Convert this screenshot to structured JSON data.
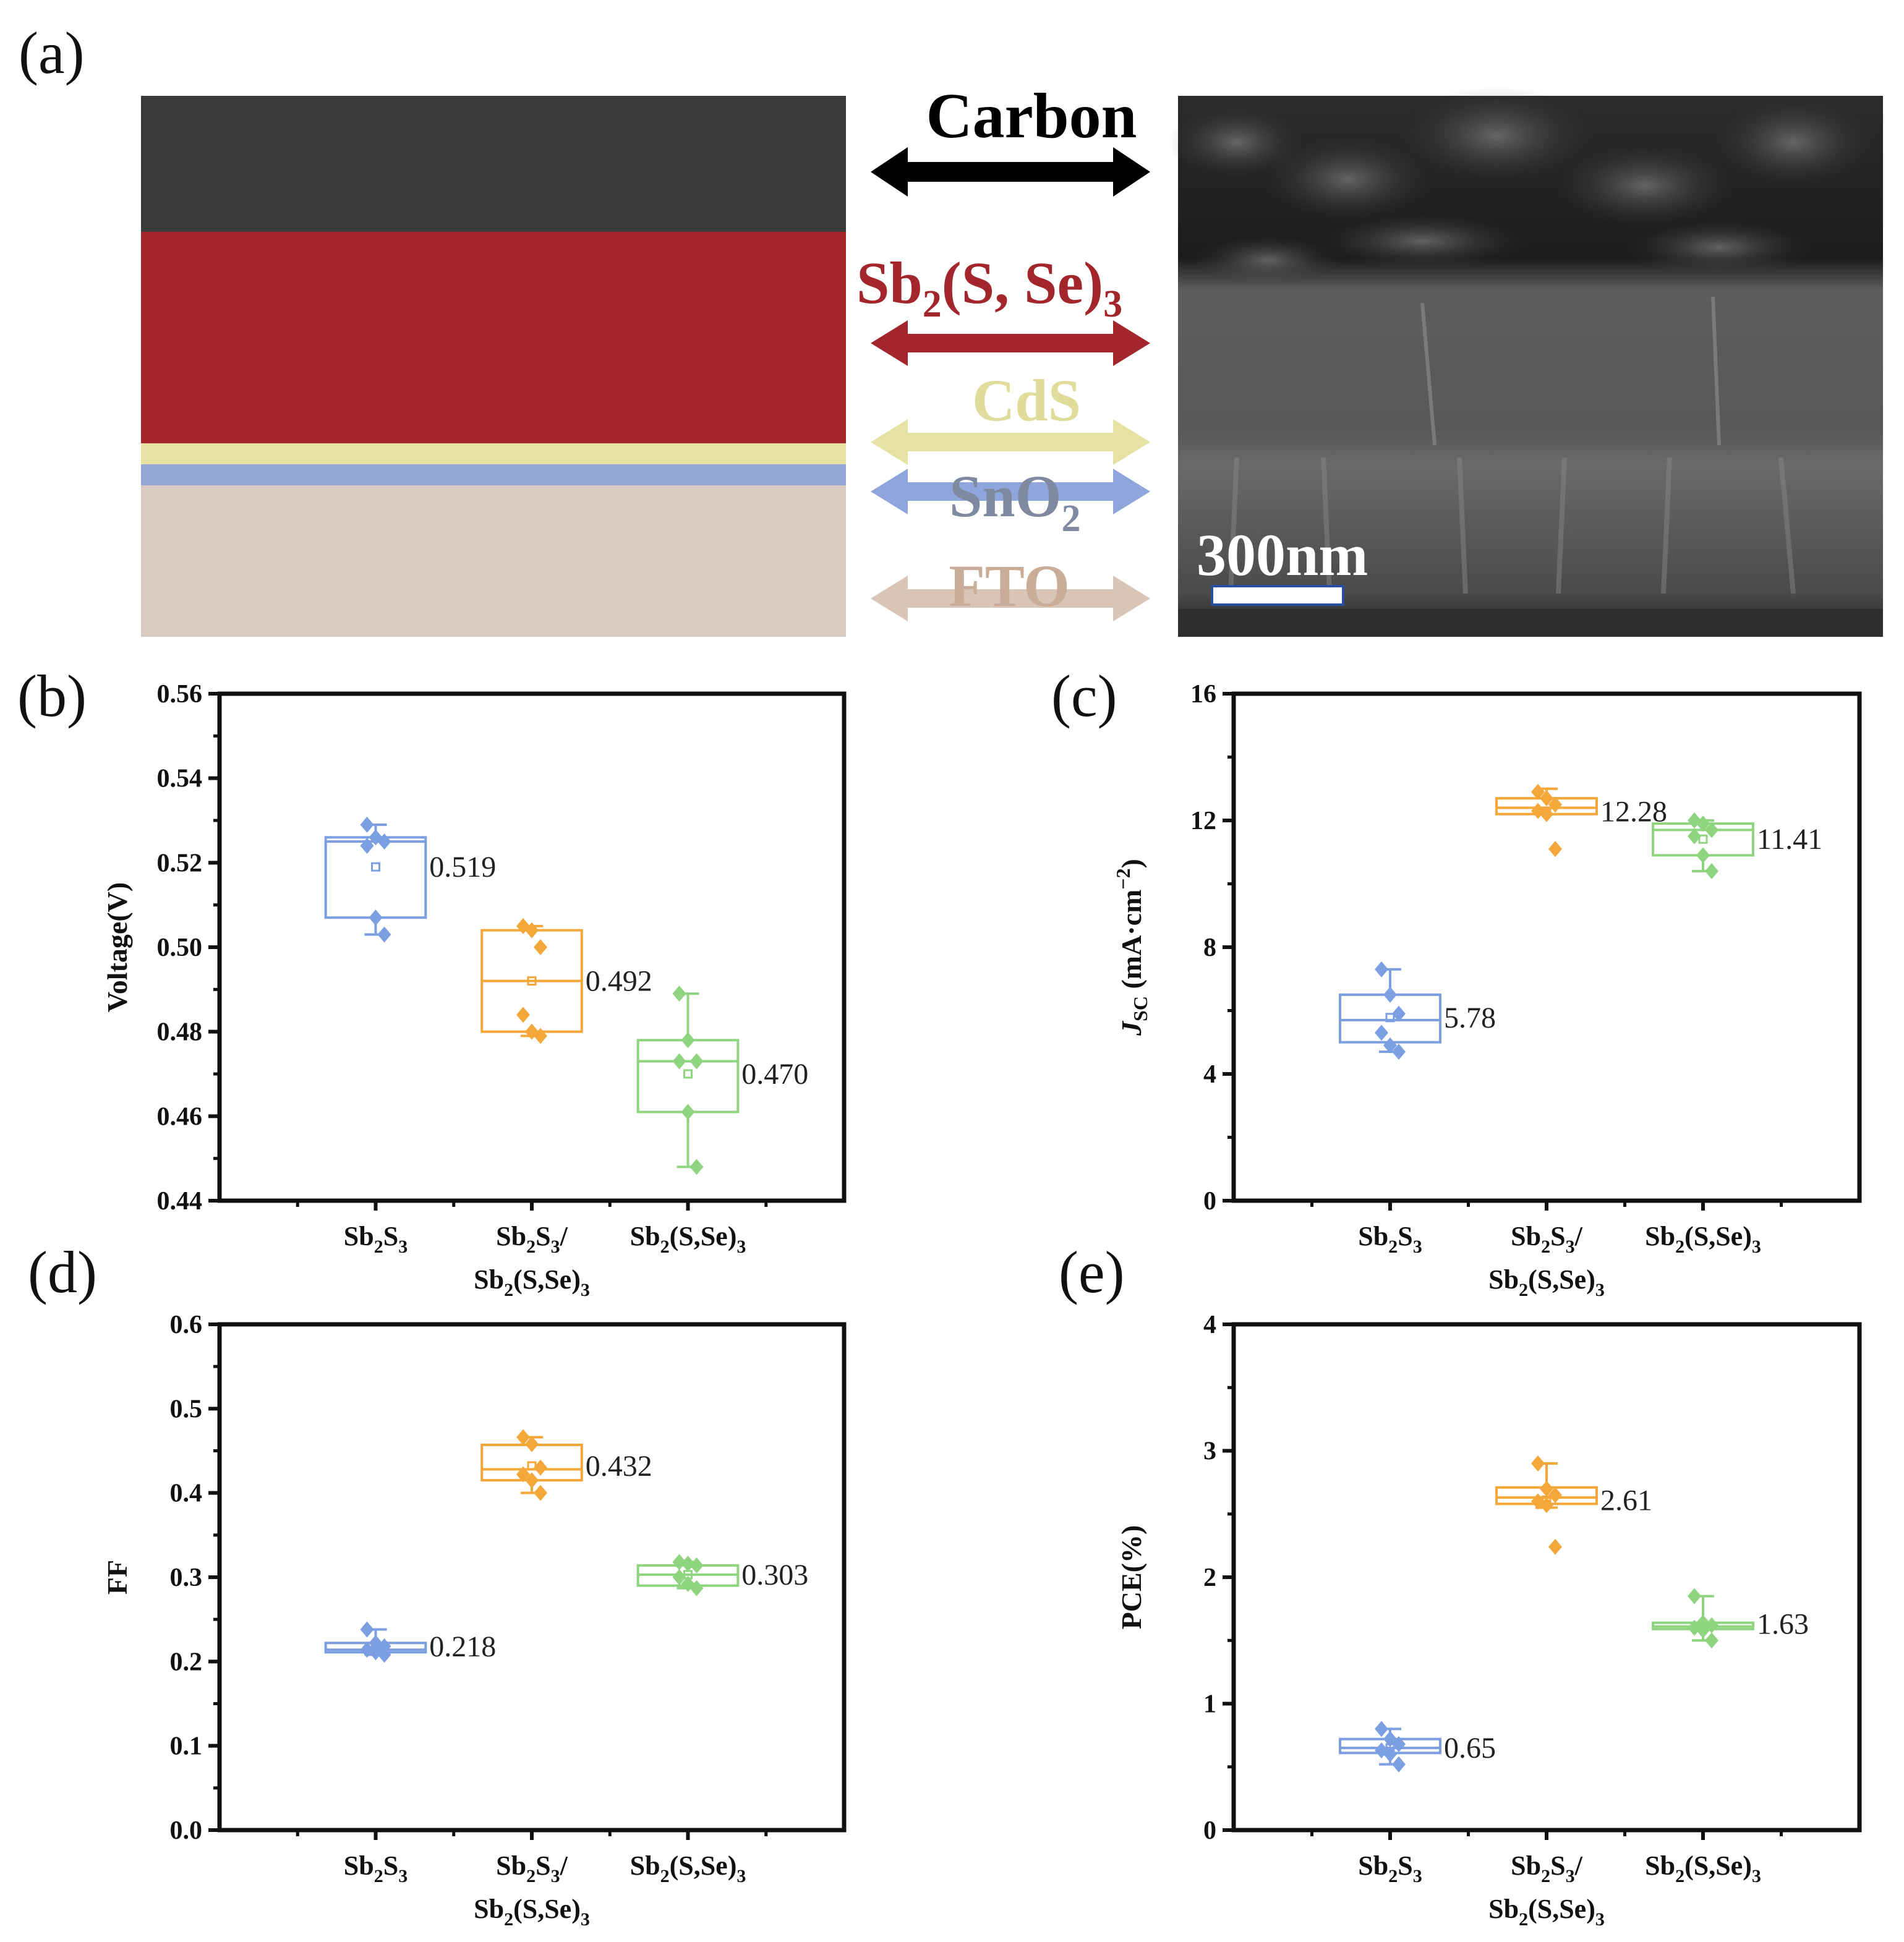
{
  "panel_a": {
    "letter": "(a)",
    "scale_bar_label": "300nm",
    "layers": [
      {
        "name": "carbon",
        "label": "Carbon",
        "sub": "",
        "color": "#3a3a3a",
        "arrow_color": "#000000",
        "text_color": "#000000"
      },
      {
        "name": "absorber",
        "label": "Sb2(S, Se)3",
        "sub": "",
        "color": "#a3262c",
        "arrow_color": "#a3262c",
        "text_color": "#a3262c"
      },
      {
        "name": "cds",
        "label": "CdS",
        "sub": "",
        "color": "#e6e2a4",
        "arrow_color": "#e6e2a4",
        "text_color": "#e0dc9c"
      },
      {
        "name": "sno2",
        "label": "SnO2",
        "sub": "",
        "color": "#94a8d6",
        "arrow_color": "#8ea6dc",
        "text_color": "#7f8aa0"
      },
      {
        "name": "fto",
        "label": "FTO",
        "sub": "",
        "color": "#d8cbc0",
        "arrow_color": "#d8c5b5",
        "text_color": "#c9ad98"
      }
    ]
  },
  "chart_data": [
    {
      "panel": "(b)",
      "type": "box",
      "ylabel": "Voltage(V)",
      "ylim": [
        0.44,
        0.56
      ],
      "yticks": [
        "0.44",
        "0.46",
        "0.48",
        "0.50",
        "0.52",
        "0.54",
        "0.56"
      ],
      "categories": [
        "Sb2S3",
        "Sb2S3/Sb2(S,Se)3",
        "Sb2(S,Se)3"
      ],
      "series": [
        {
          "name": "Sb2S3",
          "color": "#7b9fe0",
          "q1": 0.507,
          "median": 0.525,
          "q3": 0.526,
          "mean": 0.519,
          "whisker_low": 0.503,
          "whisker_high": 0.529,
          "points": [
            0.529,
            0.526,
            0.525,
            0.524,
            0.507,
            0.503
          ],
          "label": "0.519"
        },
        {
          "name": "Sb2S3/Sb2(S,Se)3",
          "color": "#f5a83a",
          "q1": 0.48,
          "median": 0.492,
          "q3": 0.504,
          "mean": 0.492,
          "whisker_low": 0.479,
          "whisker_high": 0.505,
          "points": [
            0.505,
            0.504,
            0.5,
            0.484,
            0.48,
            0.479
          ],
          "label": "0.492"
        },
        {
          "name": "Sb2(S,Se)3",
          "color": "#8fd47f",
          "q1": 0.461,
          "median": 0.473,
          "q3": 0.478,
          "mean": 0.47,
          "whisker_low": 0.448,
          "whisker_high": 0.489,
          "points": [
            0.489,
            0.478,
            0.473,
            0.473,
            0.461,
            0.448
          ],
          "label": "0.470"
        }
      ]
    },
    {
      "panel": "(c)",
      "type": "box",
      "ylabel": "JSC (mA·cm−2)",
      "ylim": [
        0,
        16
      ],
      "yticks": [
        "0",
        "4",
        "8",
        "12",
        "16"
      ],
      "categories": [
        "Sb2S3",
        "Sb2S3/Sb2(S,Se)3",
        "Sb2(S,Se)3"
      ],
      "series": [
        {
          "name": "Sb2S3",
          "color": "#7b9fe0",
          "q1": 5.0,
          "median": 5.7,
          "q3": 6.5,
          "mean": 5.78,
          "whisker_low": 4.7,
          "whisker_high": 7.3,
          "points": [
            7.3,
            6.5,
            5.9,
            5.3,
            4.9,
            4.7
          ],
          "label": "5.78"
        },
        {
          "name": "Sb2S3/Sb2(S,Se)3",
          "color": "#f5a83a",
          "q1": 12.2,
          "median": 12.4,
          "q3": 12.7,
          "mean": 12.28,
          "whisker_low": 12.2,
          "whisker_high": 13.0,
          "points": [
            12.9,
            12.7,
            12.5,
            12.3,
            12.2,
            11.1
          ],
          "label": "12.28"
        },
        {
          "name": "Sb2(S,Se)3",
          "color": "#8fd47f",
          "q1": 10.9,
          "median": 11.7,
          "q3": 11.9,
          "mean": 11.41,
          "whisker_low": 10.4,
          "whisker_high": 12.0,
          "points": [
            12.0,
            11.9,
            11.7,
            11.5,
            10.9,
            10.4
          ],
          "label": "11.41"
        }
      ]
    },
    {
      "panel": "(d)",
      "type": "box",
      "ylabel": "FF",
      "ylim": [
        0.0,
        0.6
      ],
      "yticks": [
        "0.0",
        "0.1",
        "0.2",
        "0.3",
        "0.4",
        "0.5",
        "0.6"
      ],
      "categories": [
        "Sb2S3",
        "Sb2S3/Sb2(S,Se)3",
        "Sb2(S,Se)3"
      ],
      "series": [
        {
          "name": "Sb2S3",
          "color": "#7b9fe0",
          "q1": 0.211,
          "median": 0.214,
          "q3": 0.222,
          "mean": 0.218,
          "whisker_low": 0.208,
          "whisker_high": 0.238,
          "points": [
            0.238,
            0.222,
            0.218,
            0.214,
            0.211,
            0.208
          ],
          "label": "0.218"
        },
        {
          "name": "Sb2S3/Sb2(S,Se)3",
          "color": "#f5a83a",
          "q1": 0.415,
          "median": 0.428,
          "q3": 0.457,
          "mean": 0.432,
          "whisker_low": 0.4,
          "whisker_high": 0.466,
          "points": [
            0.466,
            0.458,
            0.43,
            0.422,
            0.415,
            0.4
          ],
          "label": "0.432"
        },
        {
          "name": "Sb2(S,Se)3",
          "color": "#8fd47f",
          "q1": 0.29,
          "median": 0.303,
          "q3": 0.314,
          "mean": 0.303,
          "whisker_low": 0.287,
          "whisker_high": 0.318,
          "points": [
            0.318,
            0.316,
            0.314,
            0.3,
            0.292,
            0.287
          ],
          "label": "0.303"
        }
      ]
    },
    {
      "panel": "(e)",
      "type": "box",
      "ylabel": "PCE(%)",
      "ylim": [
        0,
        4
      ],
      "yticks": [
        "0",
        "1",
        "2",
        "3",
        "4"
      ],
      "categories": [
        "Sb2S3",
        "Sb2S3/Sb2(S,Se)3",
        "Sb2(S,Se)3"
      ],
      "series": [
        {
          "name": "Sb2S3",
          "color": "#7b9fe0",
          "q1": 0.61,
          "median": 0.65,
          "q3": 0.72,
          "mean": 0.65,
          "whisker_low": 0.52,
          "whisker_high": 0.8,
          "points": [
            0.8,
            0.72,
            0.68,
            0.63,
            0.6,
            0.52
          ],
          "label": "0.65"
        },
        {
          "name": "Sb2S3/Sb2(S,Se)3",
          "color": "#f5a83a",
          "q1": 2.58,
          "median": 2.63,
          "q3": 2.71,
          "mean": 2.61,
          "whisker_low": 2.55,
          "whisker_high": 2.9,
          "points": [
            2.9,
            2.7,
            2.65,
            2.6,
            2.57,
            2.24
          ],
          "label": "2.61"
        },
        {
          "name": "Sb2(S,Se)3",
          "color": "#8fd47f",
          "q1": 1.59,
          "median": 1.61,
          "q3": 1.64,
          "mean": 1.63,
          "whisker_low": 1.5,
          "whisker_high": 1.85,
          "points": [
            1.85,
            1.64,
            1.62,
            1.6,
            1.58,
            1.5
          ],
          "label": "1.63"
        }
      ]
    }
  ]
}
